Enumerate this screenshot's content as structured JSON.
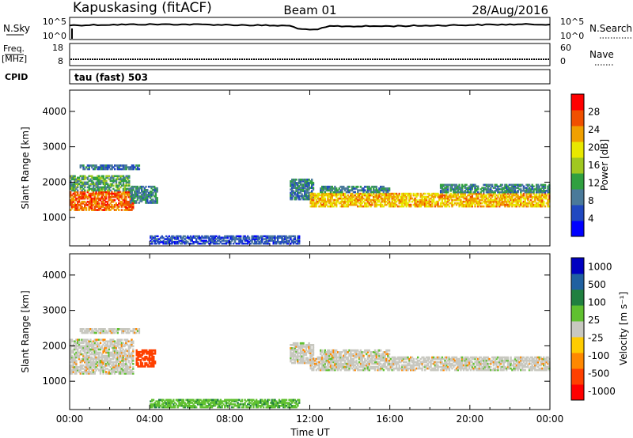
{
  "header": {
    "station": "Kapuskasing (fitACF)",
    "beam": "Beam 01",
    "date": "28/Aug/2016"
  },
  "strips": {
    "nsky": {
      "label": "N.Sky",
      "ticks": [
        "10^5",
        "10^0"
      ]
    },
    "nsearch": {
      "label": "N.Search",
      "ticks": [
        "10^5",
        "10^0"
      ]
    },
    "freq": {
      "label": "Freq.",
      "unit": "[MHz]",
      "ticks": [
        "18",
        "8"
      ]
    },
    "nave": {
      "label": "Nave",
      "ticks": [
        "60",
        "0"
      ]
    },
    "cpid": {
      "label": "CPID",
      "value": "tau (fast) 503"
    }
  },
  "colors": {
    "grey": "#c8c8c0",
    "axis": "#000000",
    "power": [
      "#0000ff",
      "#2048c0",
      "#4a7a9a",
      "#30a040",
      "#a0c820",
      "#e8e800",
      "#f0a000",
      "#f05000",
      "#ff0000"
    ],
    "velocity": [
      "#ff0000",
      "#ff4000",
      "#ff8800",
      "#ffcc00",
      "#c8c8c0",
      "#60c030",
      "#208040",
      "#2060a0",
      "#0000c0"
    ]
  },
  "chart_data": [
    {
      "type": "heatmap",
      "name": "Power",
      "xlabel": "Time UT",
      "ylabel": "Slant Range [km]",
      "x_ticks": [
        "00:00",
        "04:00",
        "08:00",
        "12:00",
        "16:00",
        "20:00",
        "00:00"
      ],
      "y_ticks": [
        "1000",
        "2000",
        "3000",
        "4000"
      ],
      "ylim": [
        200,
        4600
      ],
      "colorbar": {
        "label": "Power [dB]",
        "ticks": [
          "4",
          "8",
          "12",
          "16",
          "20",
          "24",
          "28"
        ],
        "range": [
          0,
          32
        ]
      },
      "regions": [
        {
          "t": [
            0.0,
            3.2
          ],
          "r": [
            1200,
            1750
          ],
          "level": 26
        },
        {
          "t": [
            0.0,
            3.0
          ],
          "r": [
            1750,
            2200
          ],
          "level": 12
        },
        {
          "t": [
            3.0,
            4.4
          ],
          "r": [
            1400,
            1900
          ],
          "level": 10
        },
        {
          "t": [
            0.5,
            3.5
          ],
          "r": [
            2350,
            2500
          ],
          "level": 8
        },
        {
          "t": [
            11.0,
            12.2
          ],
          "r": [
            1500,
            2100
          ],
          "level": 9
        },
        {
          "t": [
            12.0,
            24.0
          ],
          "r": [
            1300,
            1700
          ],
          "level": 22
        },
        {
          "t": [
            12.5,
            16.0
          ],
          "r": [
            1700,
            1900
          ],
          "level": 10
        },
        {
          "t": [
            18.5,
            24.0
          ],
          "r": [
            1700,
            1950
          ],
          "level": 10
        },
        {
          "t": [
            4.0,
            11.5
          ],
          "r": [
            250,
            500
          ],
          "level": 6
        }
      ]
    },
    {
      "type": "heatmap",
      "name": "Velocity",
      "xlabel": "Time UT",
      "ylabel": "Slant Range [km]",
      "x_ticks": [
        "00:00",
        "04:00",
        "08:00",
        "12:00",
        "16:00",
        "20:00",
        "00:00"
      ],
      "y_ticks": [
        "1000",
        "2000",
        "3000",
        "4000"
      ],
      "ylim": [
        200,
        4600
      ],
      "colorbar": {
        "label": "Velocity [m s⁻¹]",
        "ticks": [
          "1000",
          "500",
          "100",
          "25",
          "-25",
          "-100",
          "-500",
          "-1000"
        ]
      },
      "regions": [
        {
          "t": [
            0.0,
            3.2
          ],
          "r": [
            1200,
            2200
          ],
          "vel": 0
        },
        {
          "t": [
            0.5,
            3.5
          ],
          "r": [
            2350,
            2500
          ],
          "vel": 0
        },
        {
          "t": [
            3.3,
            4.3
          ],
          "r": [
            1400,
            1900
          ],
          "vel": -300
        },
        {
          "t": [
            11.0,
            12.2
          ],
          "r": [
            1500,
            2100
          ],
          "vel": 0
        },
        {
          "t": [
            12.0,
            24.0
          ],
          "r": [
            1300,
            1700
          ],
          "vel": 0
        },
        {
          "t": [
            12.5,
            16.0
          ],
          "r": [
            1700,
            1900
          ],
          "vel": 0
        },
        {
          "t": [
            4.0,
            11.5
          ],
          "r": [
            250,
            500
          ],
          "vel": 80
        }
      ]
    }
  ]
}
